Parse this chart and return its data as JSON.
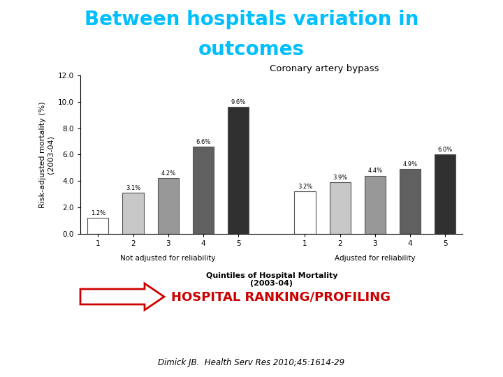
{
  "title_line1": "Between hospitals variation in",
  "title_line2": "outcomes",
  "title_color": "#00BFFF",
  "chart_title": "Coronary artery bypass",
  "ylabel": "Risk-adjusted mortality (%)\n(2003-04)",
  "xlabel_group1": "Not adjusted for reliability",
  "xlabel_group2": "Adjusted for reliability",
  "xlabel_main_line1": "Quintiles of Hospital Mortality",
  "xlabel_main_line2": "(2003-04)",
  "ylim": [
    0,
    12.0
  ],
  "yticks": [
    0.0,
    2.0,
    4.0,
    6.0,
    8.0,
    10.0,
    12.0
  ],
  "group1_values": [
    1.2,
    3.1,
    4.2,
    6.6,
    9.6
  ],
  "group2_values": [
    3.2,
    3.9,
    4.4,
    4.9,
    6.0
  ],
  "group1_labels": [
    "1.2%",
    "3.1%",
    "4.2%",
    "6.6%",
    "9.6%"
  ],
  "group2_labels": [
    "3.2%",
    "3.9%",
    "4.4%",
    "4.9%",
    "6.0%"
  ],
  "bar_colors": [
    "#ffffff",
    "#c8c8c8",
    "#989898",
    "#606060",
    "#303030"
  ],
  "bar_edge_color": "#555555",
  "arrow_color": "#cc0000",
  "arrow_text": "HOSPITAL RANKING/PROFILING",
  "arrow_text_color": "#cc0000",
  "citation": "Dimick JB.  Health Serv Res 2010;45:1614-29",
  "background_color": "#ffffff"
}
